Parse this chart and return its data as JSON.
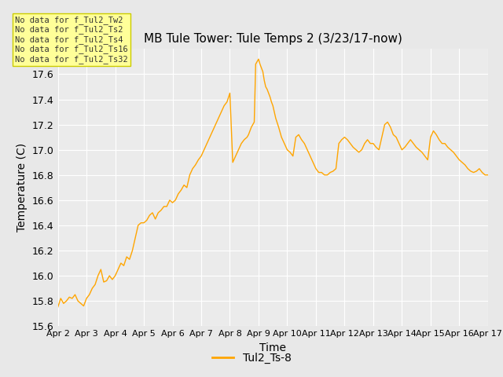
{
  "title": "MB Tule Tower: Tule Temps 2 (3/23/17-now)",
  "xlabel": "Time",
  "ylabel": "Temperature (C)",
  "ylim": [
    15.6,
    17.8
  ],
  "yticks": [
    15.6,
    15.8,
    16.0,
    16.2,
    16.4,
    16.6,
    16.8,
    17.0,
    17.2,
    17.4,
    17.6
  ],
  "legend_label": "Tul2_Ts-8",
  "line_color": "#FFA500",
  "bg_color": "#E8E8E8",
  "plot_bg_color": "#EBEBEB",
  "no_data_labels": [
    "No data for f_Tul2_Tw2",
    "No data for f_Tul2_Ts2",
    "No data for f_Tul2_Ts4",
    "No data for f_Tul2_Ts16",
    "No data for f_Tul2_Ts32"
  ],
  "no_data_box_color": "#FFFF99",
  "no_data_box_edge": "#CCCC00",
  "xtick_labels": [
    "Apr 2",
    "Apr 3",
    "Apr 4",
    "Apr 5",
    "Apr 6",
    "Apr 7",
    "Apr 8",
    "Apr 9",
    "Apr 10",
    "Apr 11",
    "Apr 12",
    "Apr 13",
    "Apr 14",
    "Apr 15",
    "Apr 16",
    "Apr 17"
  ],
  "curve_x": [
    0,
    0.1,
    0.2,
    0.3,
    0.4,
    0.5,
    0.6,
    0.7,
    0.8,
    0.9,
    1.0,
    1.1,
    1.2,
    1.3,
    1.4,
    1.5,
    1.6,
    1.7,
    1.8,
    1.9,
    2.0,
    2.1,
    2.2,
    2.3,
    2.4,
    2.5,
    2.6,
    2.7,
    2.8,
    2.9,
    3.0,
    3.1,
    3.2,
    3.3,
    3.4,
    3.5,
    3.6,
    3.7,
    3.8,
    3.9,
    4.0,
    4.1,
    4.2,
    4.3,
    4.4,
    4.5,
    4.6,
    4.7,
    4.8,
    4.9,
    5.0,
    5.1,
    5.2,
    5.3,
    5.4,
    5.5,
    5.6,
    5.7,
    5.8,
    5.9,
    6.0,
    6.1,
    6.2,
    6.3,
    6.4,
    6.5,
    6.6,
    6.65,
    6.7,
    6.75,
    6.8,
    6.85,
    6.9,
    6.95,
    7.0,
    7.05,
    7.1,
    7.15,
    7.2,
    7.25,
    7.3,
    7.35,
    7.4,
    7.45,
    7.5,
    7.55,
    7.6,
    7.7,
    7.8,
    7.9,
    8.0,
    8.1,
    8.2,
    8.3,
    8.4,
    8.5,
    8.6,
    8.7,
    8.8,
    8.9,
    9.0,
    9.1,
    9.2,
    9.3,
    9.4,
    9.5,
    9.6,
    9.7,
    9.8,
    9.9,
    10.0,
    10.1,
    10.2,
    10.3,
    10.4,
    10.5,
    10.6,
    10.7,
    10.8,
    10.9,
    11.0,
    11.1,
    11.2,
    11.3,
    11.4,
    11.5,
    11.6,
    11.7,
    11.8,
    11.9,
    12.0,
    12.1,
    12.2,
    12.3,
    12.4,
    12.5,
    12.6,
    12.7,
    12.8,
    12.9,
    13.0,
    13.1,
    13.2,
    13.3,
    13.4,
    13.5,
    13.6,
    13.7,
    13.8,
    13.9,
    14.0,
    14.1,
    14.2,
    14.3,
    14.4,
    14.5,
    14.6,
    14.7,
    14.8,
    14.9,
    15.0
  ],
  "curve_y": [
    15.75,
    15.82,
    15.78,
    15.8,
    15.83,
    15.82,
    15.85,
    15.8,
    15.78,
    15.76,
    15.82,
    15.85,
    15.9,
    15.93,
    16.0,
    16.05,
    15.95,
    15.96,
    16.0,
    15.97,
    16.0,
    16.05,
    16.1,
    16.08,
    16.15,
    16.13,
    16.2,
    16.3,
    16.4,
    16.42,
    16.42,
    16.44,
    16.48,
    16.5,
    16.45,
    16.5,
    16.52,
    16.55,
    16.55,
    16.6,
    16.58,
    16.6,
    16.65,
    16.68,
    16.72,
    16.7,
    16.8,
    16.85,
    16.88,
    16.92,
    16.95,
    17.0,
    17.05,
    17.1,
    17.15,
    17.2,
    17.25,
    17.3,
    17.35,
    17.38,
    17.45,
    16.9,
    16.95,
    17.0,
    17.05,
    17.08,
    17.1,
    17.12,
    17.15,
    17.18,
    17.2,
    17.22,
    17.68,
    17.7,
    17.72,
    17.68,
    17.65,
    17.62,
    17.55,
    17.5,
    17.48,
    17.45,
    17.42,
    17.38,
    17.35,
    17.3,
    17.25,
    17.18,
    17.1,
    17.05,
    17.0,
    16.98,
    16.95,
    17.1,
    17.12,
    17.08,
    17.05,
    17.0,
    16.95,
    16.9,
    16.85,
    16.82,
    16.82,
    16.8,
    16.8,
    16.82,
    16.83,
    16.85,
    17.05,
    17.08,
    17.1,
    17.08,
    17.05,
    17.02,
    17.0,
    16.98,
    17.0,
    17.05,
    17.08,
    17.05,
    17.05,
    17.02,
    17.0,
    17.1,
    17.2,
    17.22,
    17.18,
    17.12,
    17.1,
    17.05,
    17.0,
    17.02,
    17.05,
    17.08,
    17.05,
    17.02,
    17.0,
    16.98,
    16.95,
    16.92,
    17.1,
    17.15,
    17.12,
    17.08,
    17.05,
    17.05,
    17.02,
    17.0,
    16.98,
    16.95,
    16.92,
    16.9,
    16.88,
    16.85,
    16.83,
    16.82,
    16.83,
    16.85,
    16.82,
    16.8,
    16.8
  ]
}
